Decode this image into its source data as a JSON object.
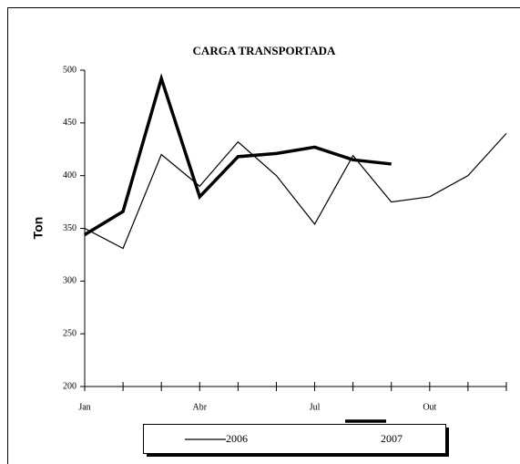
{
  "chart_data": {
    "type": "line",
    "title": "CARGA TRANSPORTADA",
    "y_label": "Ton",
    "categories": [
      "Jan",
      null,
      null,
      "Abr",
      null,
      null,
      "Jul",
      null,
      null,
      "Out",
      null,
      null
    ],
    "series": [
      {
        "name": "2006",
        "color": "#000000",
        "width": 1.2,
        "values": [
          350,
          331,
          420,
          390,
          432,
          400,
          354,
          419,
          375,
          380,
          400,
          440
        ]
      },
      {
        "name": "2007",
        "color": "#000000",
        "width": 3.5,
        "values": [
          344,
          366,
          492,
          380,
          418,
          421,
          427,
          415,
          411,
          null,
          null,
          null
        ]
      }
    ],
    "ylim": [
      200,
      500
    ],
    "yticks": [
      200,
      250,
      300,
      350,
      400,
      450,
      500
    ],
    "grid": false
  }
}
